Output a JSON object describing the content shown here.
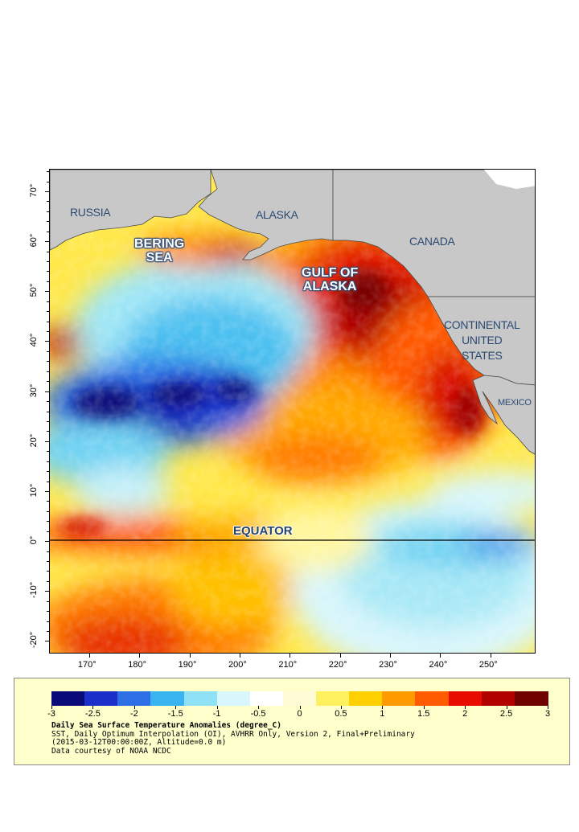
{
  "map": {
    "x_axis": {
      "unit": "degrees longitude",
      "range": [
        162,
        259
      ],
      "ticks": [
        {
          "value": 170,
          "label": "170°"
        },
        {
          "value": 180,
          "label": "180°"
        },
        {
          "value": 190,
          "label": "190°"
        },
        {
          "value": 200,
          "label": "200°"
        },
        {
          "value": 210,
          "label": "210°"
        },
        {
          "value": 220,
          "label": "220°"
        },
        {
          "value": 230,
          "label": "230°"
        },
        {
          "value": 240,
          "label": "240°"
        },
        {
          "value": 250,
          "label": "250°"
        }
      ]
    },
    "y_axis": {
      "unit": "degrees latitude",
      "range": [
        -22.5,
        74.5
      ],
      "ticks": [
        {
          "value": 70,
          "label": "70°"
        },
        {
          "value": 60,
          "label": "60°"
        },
        {
          "value": 50,
          "label": "50°"
        },
        {
          "value": 40,
          "label": "40°"
        },
        {
          "value": 30,
          "label": "30°"
        },
        {
          "value": 20,
          "label": "20°"
        },
        {
          "value": 10,
          "label": "10°"
        },
        {
          "value": 0,
          "label": "0°"
        },
        {
          "value": -10,
          "label": "-10°"
        },
        {
          "value": -20,
          "label": "-20°"
        }
      ]
    },
    "equator_line": {
      "latitude": 0
    },
    "labels": {
      "russia": "RUSSIA",
      "alaska": "ALASKA",
      "canada": "CANADA",
      "bering_line1": "BERING",
      "bering_line2": "SEA",
      "gulf_line1": "GULF OF",
      "gulf_line2": "ALASKA",
      "continental_line1": "CONTINENTAL",
      "continental_line2": "UNITED",
      "continental_line3": "STATES",
      "mexico": "MEXICO",
      "equator": "EQUATOR"
    },
    "colors": {
      "land": "#c8c8c8",
      "land_border": "#4a4a4a",
      "equator_line": "#000000"
    }
  },
  "legend": {
    "scale_min": -3,
    "scale_max": 3,
    "colorbar_stops": [
      "#0a0a78",
      "#1c2fc8",
      "#2f6fe6",
      "#39b4f0",
      "#8fe2f5",
      "#d8f6fb",
      "#ffffff",
      "#fffbd6",
      "#fff060",
      "#ffd000",
      "#ff9a00",
      "#ff5a00",
      "#e80c00",
      "#b00000",
      "#6e0000"
    ],
    "tick_labels": [
      {
        "value": -3,
        "label": "-3"
      },
      {
        "value": -2.5,
        "label": "-2.5"
      },
      {
        "value": -2,
        "label": "-2"
      },
      {
        "value": -1.5,
        "label": "-1.5"
      },
      {
        "value": -1,
        "label": "-1"
      },
      {
        "value": -0.5,
        "label": "-0.5"
      },
      {
        "value": 0,
        "label": "0"
      },
      {
        "value": 0.5,
        "label": "0.5"
      },
      {
        "value": 1,
        "label": "1"
      },
      {
        "value": 1.5,
        "label": "1.5"
      },
      {
        "value": 2,
        "label": "2"
      },
      {
        "value": 2.5,
        "label": "2.5"
      },
      {
        "value": 3,
        "label": "3"
      }
    ],
    "title": "Daily Sea Surface Temperature Anomalies (degree_C)",
    "line1": "SST, Daily Optimum Interpolation (OI), AVHRR Only, Version 2, Final+Preliminary",
    "line2": "(2015-03-12T00:00:00Z, Altitude=0.0 m)",
    "line3": "Data courtesy of NOAA NCDC"
  }
}
